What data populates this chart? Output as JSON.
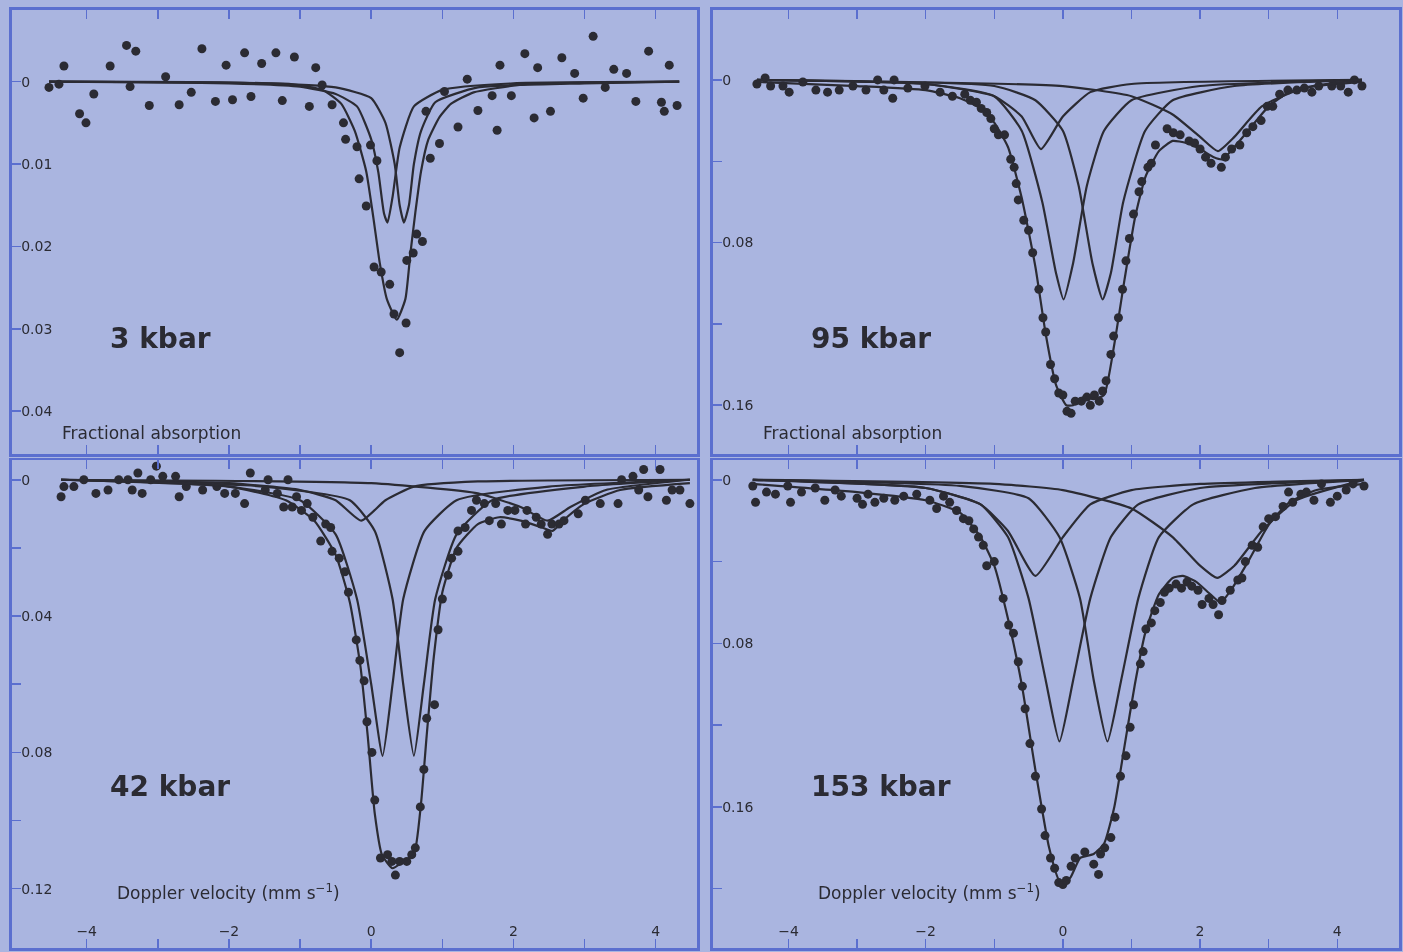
{
  "chart_data": [
    {
      "type": "scatter",
      "ylabel": "Fractional absorption",
      "annotations": [
        "3 kbar"
      ],
      "xlim": [
        -5.05,
        4.58
      ],
      "ylim": [
        0.0452,
        -0.0087
      ],
      "xticks": [
        {
          "value": -4,
          "label": null
        },
        {
          "value": -3,
          "label": null
        },
        {
          "value": -2,
          "label": null
        },
        {
          "value": -1,
          "label": null
        },
        {
          "value": 0,
          "label": null
        },
        {
          "value": 1,
          "label": null
        },
        {
          "value": 2,
          "label": null
        },
        {
          "value": 3,
          "label": null
        },
        {
          "value": 4,
          "label": null
        }
      ],
      "yticks": [
        0,
        0.01,
        0.02,
        0.03,
        0.04
      ],
      "tick_labels": "y",
      "grid": false,
      "line_style": "solid",
      "series": [
        {
          "type": "scatter",
          "color": "#2b2b33",
          "marker": "circle",
          "x": [
            -4.53,
            -4.39,
            -4.32,
            -4.1,
            -4.01,
            -3.9,
            -3.67,
            -3.44,
            -3.39,
            -3.31,
            -3.12,
            -2.89,
            -2.7,
            -2.53,
            -2.38,
            -2.19,
            -2.04,
            -1.95,
            -1.78,
            -1.69,
            -1.54,
            -1.34,
            -1.25,
            -1.08,
            -0.87,
            -0.78,
            -0.69,
            -0.55,
            -0.39,
            -0.36,
            -0.2,
            -0.17,
            -0.07,
            -0.01,
            0.08,
            0.04,
            0.14,
            0.26,
            0.32,
            0.4,
            0.49,
            0.5,
            0.59,
            0.64,
            0.72,
            0.77,
            0.83,
            0.96,
            1.03,
            1.22,
            1.35,
            1.5,
            1.7,
            1.77,
            1.81,
            1.97,
            2.16,
            2.29,
            2.34,
            2.52,
            2.68,
            2.86,
            2.98,
            3.12,
            3.29,
            3.41,
            3.59,
            3.72,
            3.9,
            4.08,
            4.12,
            4.19,
            4.3
          ],
          "values": [
            0.0007,
            0.0003,
            -0.0019,
            0.0039,
            0.005,
            0.0015,
            -0.0019,
            -0.0044,
            0.0006,
            -0.0037,
            0.0029,
            -0.0006,
            0.0028,
            0.0013,
            -0.004,
            0.0024,
            -0.002,
            0.0022,
            -0.0035,
            0.0018,
            -0.0022,
            -0.0035,
            0.0023,
            -0.003,
            0.003,
            -0.0017,
            0.0004,
            0.0028,
            0.005,
            0.007,
            0.0079,
            0.0118,
            0.0151,
            0.0077,
            0.0096,
            0.0225,
            0.0231,
            0.0246,
            0.0282,
            0.0329,
            0.0293,
            0.0217,
            0.0208,
            0.0185,
            0.0194,
            0.0036,
            0.0093,
            0.0075,
            0.0012,
            0.0055,
            -0.0003,
            0.0035,
            0.0017,
            0.0059,
            -0.002,
            0.0017,
            -0.0034,
            0.0044,
            -0.0017,
            0.0036,
            -0.0029,
            -0.001,
            0.002,
            -0.0055,
            0.0007,
            -0.0015,
            -0.001,
            0.0024,
            -0.0037,
            0.0025,
            0.0036,
            -0.002,
            0.0029
          ]
        },
        {
          "type": "line",
          "color": "#2b2b33",
          "x": [
            -4.53,
            -2.09,
            -1.13,
            -0.68,
            -0.42,
            -0.23,
            -0.07,
            0.03,
            0.12,
            0.22,
            0.36,
            0.48,
            0.55,
            0.62,
            0.7,
            0.8,
            0.96,
            1.12,
            1.44,
            2.08,
            3.04,
            4.33
          ],
          "values": [
            0,
            0.0001,
            0.0003,
            0.001,
            0.0027,
            0.006,
            0.0109,
            0.0165,
            0.022,
            0.0264,
            0.0289,
            0.0264,
            0.0209,
            0.0159,
            0.0109,
            0.0071,
            0.0043,
            0.0027,
            0.0013,
            0.0004,
            0.0001,
            0
          ]
        },
        {
          "type": "line",
          "color": "#2b2b33",
          "x": [
            -4.53,
            -2,
            -1,
            -0.5,
            -0.2,
            0,
            0.1,
            0.18,
            0.23,
            0.3,
            0.4,
            0.6,
            1,
            2,
            4.33
          ],
          "values": [
            0,
            0.0002,
            0.0006,
            0.0015,
            0.003,
            0.007,
            0.011,
            0.016,
            0.0171,
            0.014,
            0.008,
            0.003,
            0.001,
            0.0002,
            0
          ]
        },
        {
          "type": "line",
          "color": "#2b2b33",
          "x": [
            -4.53,
            -2,
            -0.5,
            0,
            0.2,
            0.33,
            0.4,
            0.46,
            0.53,
            0.6,
            0.7,
            0.9,
            1.5,
            3,
            4.33
          ],
          "values": [
            0,
            0.0001,
            0.0007,
            0.002,
            0.005,
            0.01,
            0.015,
            0.0171,
            0.015,
            0.01,
            0.006,
            0.0025,
            0.0007,
            0.0002,
            0
          ]
        }
      ]
    },
    {
      "type": "scatter",
      "ylabel": "Fractional absorption",
      "annotations": [
        "95 kbar"
      ],
      "xlim": [
        -5.1,
        4.9
      ],
      "ylim": [
        0.184,
        -0.0344
      ],
      "xticks": [
        {
          "value": -4,
          "label": null
        },
        {
          "value": -3,
          "label": null
        },
        {
          "value": -2,
          "label": null
        },
        {
          "value": -1,
          "label": null
        },
        {
          "value": 0,
          "label": null
        },
        {
          "value": 1,
          "label": null
        },
        {
          "value": 2,
          "label": null
        },
        {
          "value": 3,
          "label": null
        },
        {
          "value": 4,
          "label": null
        }
      ],
      "yticks": [
        0,
        {
          "value": 0.04,
          "label": null
        },
        0.08,
        {
          "value": 0.12,
          "label": null
        },
        0.16
      ],
      "tick_labels": "y",
      "grid": false,
      "line_style": "solid",
      "series": [
        {
          "type": "scatter",
          "color": "#2b2b33",
          "marker": "circle",
          "x": [
            -4.46,
            -4.34,
            -4.26,
            -4.08,
            -3.99,
            -3.79,
            -3.6,
            -3.43,
            -3.26,
            -3.06,
            -2.87,
            -2.7,
            -2.61,
            -2.48,
            -2.46,
            -2.26,
            -2.01,
            -1.79,
            -1.61,
            -1.43,
            -1.35,
            -1.26,
            -1.19,
            -1.11,
            -1.05,
            -1.0,
            -0.94,
            -0.85,
            -0.76,
            -0.71,
            -0.68,
            -0.65,
            -0.57,
            -0.5,
            -0.44,
            -0.35,
            -0.29,
            -0.25,
            -0.18,
            -0.12,
            -0.06,
            0.0,
            0.06,
            0.12,
            0.18,
            0.27,
            0.35,
            0.4,
            0.46,
            0.53,
            0.58,
            0.63,
            0.7,
            0.74,
            0.81,
            0.87,
            0.92,
            0.97,
            1.03,
            1.11,
            1.15,
            1.24,
            1.29,
            1.35,
            1.52,
            1.61,
            1.71,
            1.84,
            1.92,
            2.0,
            2.08,
            2.16,
            2.31,
            2.37,
            2.46,
            2.58,
            2.68,
            2.77,
            2.89,
            2.98,
            3.06,
            3.16,
            3.28,
            3.41,
            3.52,
            3.63,
            3.73,
            3.92,
            4.05,
            4.16,
            4.25,
            4.36
          ],
          "values": [
            0.002,
            -0.001,
            0.003,
            0.003,
            0.006,
            0.001,
            0.005,
            0.006,
            0.005,
            0.003,
            0.005,
            0.0,
            0.005,
            0.009,
            0.0,
            0.004,
            0.003,
            0.006,
            0.008,
            0.007,
            0.01,
            0.011,
            0.014,
            0.016,
            0.019,
            0.024,
            0.027,
            0.027,
            0.039,
            0.043,
            0.051,
            0.059,
            0.069,
            0.074,
            0.085,
            0.103,
            0.117,
            0.124,
            0.14,
            0.147,
            0.154,
            0.155,
            0.163,
            0.164,
            0.158,
            0.158,
            0.156,
            0.16,
            0.155,
            0.158,
            0.153,
            0.148,
            0.135,
            0.126,
            0.117,
            0.103,
            0.089,
            0.078,
            0.066,
            0.055,
            0.05,
            0.043,
            0.041,
            0.032,
            0.024,
            0.026,
            0.027,
            0.03,
            0.031,
            0.034,
            0.038,
            0.041,
            0.043,
            0.038,
            0.034,
            0.032,
            0.026,
            0.023,
            0.02,
            0.013,
            0.013,
            0.007,
            0.005,
            0.005,
            0.004,
            0.006,
            0.003,
            0.003,
            0.003,
            0.006,
            0.0,
            0.003
          ]
        },
        {
          "type": "line",
          "color": "#2b2b33",
          "x": [
            -4.46,
            -3,
            -2,
            -1.5,
            -1.2,
            -1,
            -0.8,
            -0.6,
            -0.4,
            -0.25,
            -0.1,
            0.05,
            0.15,
            0.3,
            0.45,
            0.6,
            0.75,
            0.9,
            1.05,
            1.2,
            1.4,
            1.6,
            1.8,
            2.0,
            2.2,
            2.33,
            2.5,
            2.7,
            3.0,
            3.3,
            3.7,
            4.36
          ],
          "values": [
            0.001,
            0.003,
            0.005,
            0.009,
            0.014,
            0.021,
            0.033,
            0.058,
            0.092,
            0.125,
            0.15,
            0.16,
            0.16,
            0.156,
            0.157,
            0.155,
            0.13,
            0.098,
            0.068,
            0.048,
            0.035,
            0.03,
            0.031,
            0.034,
            0.038,
            0.039,
            0.033,
            0.025,
            0.013,
            0.006,
            0.003,
            0.001
          ]
        },
        {
          "type": "line",
          "color": "#2b2b33",
          "x": [
            -4.46,
            -2,
            -1,
            -0.6,
            -0.32,
            0,
            0.4,
            1,
            4.36
          ],
          "values": [
            0,
            0.002,
            0.008,
            0.018,
            0.034,
            0.018,
            0.006,
            0.002,
            0
          ]
        },
        {
          "type": "line",
          "color": "#2b2b33",
          "x": [
            -4.46,
            -2,
            -1,
            -0.6,
            -0.3,
            -0.1,
            0.01,
            0.15,
            0.35,
            0.6,
            1.0,
            2,
            4.36
          ],
          "values": [
            0,
            0.002,
            0.008,
            0.025,
            0.06,
            0.095,
            0.108,
            0.09,
            0.052,
            0.025,
            0.01,
            0.003,
            0
          ]
        },
        {
          "type": "line",
          "color": "#2b2b33",
          "x": [
            -4.46,
            -1,
            -0.4,
            0,
            0.23,
            0.43,
            0.58,
            0.7,
            0.88,
            1.2,
            1.6,
            2.5,
            4.36
          ],
          "values": [
            0,
            0.003,
            0.01,
            0.025,
            0.052,
            0.09,
            0.108,
            0.095,
            0.06,
            0.025,
            0.01,
            0.003,
            0
          ]
        },
        {
          "type": "line",
          "color": "#2b2b33",
          "x": [
            -4.46,
            0,
            1,
            1.6,
            2.0,
            2.26,
            2.5,
            2.9,
            3.5,
            4.36
          ],
          "values": [
            0,
            0.003,
            0.008,
            0.017,
            0.028,
            0.035,
            0.028,
            0.013,
            0.004,
            0
          ]
        }
      ]
    },
    {
      "type": "scatter",
      "xlabel": "Doppler velocity (mm s$^{−1}$)",
      "annotations": [
        "42 kbar"
      ],
      "xlim": [
        -5.05,
        4.58
      ],
      "ylim": [
        0.1374,
        -0.0058
      ],
      "xticks": [
        {
          "value": -4,
          "label": "−4"
        },
        {
          "value": -3,
          "label": null
        },
        {
          "value": -2,
          "label": "−2"
        },
        {
          "value": -1,
          "label": null
        },
        0,
        {
          "value": 1,
          "label": null
        },
        2,
        {
          "value": 3,
          "label": null
        },
        4
      ],
      "yticks": [
        0,
        {
          "value": 0.02,
          "label": null
        },
        0.04,
        {
          "value": 0.06,
          "label": null
        },
        0.08,
        {
          "value": 0.1,
          "label": null
        },
        0.12
      ],
      "grid": false,
      "line_style": "solid",
      "series": [
        {
          "type": "scatter",
          "color": "#2b2b33",
          "marker": "circle",
          "x": [
            -4.36,
            -4.32,
            -4.18,
            -4.04,
            -3.87,
            -3.7,
            -3.55,
            -3.42,
            -3.36,
            -3.28,
            -3.22,
            -3.1,
            -3.02,
            -2.93,
            -2.75,
            -2.7,
            -2.6,
            -2.37,
            -2.17,
            -2.06,
            -1.91,
            -1.78,
            -1.7,
            -1.49,
            -1.45,
            -1.32,
            -1.23,
            -1.17,
            -1.11,
            -1.05,
            -0.98,
            -0.9,
            -0.82,
            -0.71,
            -0.64,
            -0.57,
            -0.55,
            -0.45,
            -0.37,
            -0.32,
            -0.21,
            -0.16,
            -0.1,
            -0.06,
            0.01,
            0.05,
            0.13,
            0.23,
            0.29,
            0.34,
            0.4,
            0.5,
            0.57,
            0.62,
            0.69,
            0.74,
            0.78,
            0.89,
            0.94,
            1.0,
            1.08,
            1.13,
            1.22,
            1.22,
            1.32,
            1.41,
            1.48,
            1.59,
            1.66,
            1.75,
            1.83,
            1.92,
            2.02,
            2.17,
            2.19,
            2.32,
            2.39,
            2.48,
            2.54,
            2.64,
            2.71,
            2.91,
            3.01,
            3.22,
            3.47,
            3.52,
            3.68,
            3.76,
            3.83,
            3.89,
            4.06,
            4.15,
            4.23,
            4.34,
            4.48
          ],
          "values": [
            0.005,
            0.002,
            0.002,
            0.0,
            0.004,
            0.003,
            0.0,
            0.0,
            0.003,
            -0.002,
            0.004,
            0.0,
            -0.004,
            -0.001,
            -0.001,
            0.005,
            0.002,
            0.003,
            0.002,
            0.004,
            0.004,
            0.007,
            -0.002,
            0.003,
            0.0,
            0.004,
            0.008,
            0.0,
            0.008,
            0.005,
            0.009,
            0.007,
            0.011,
            0.018,
            0.013,
            0.014,
            0.021,
            0.023,
            0.027,
            0.033,
            0.047,
            0.053,
            0.059,
            0.071,
            0.08,
            0.094,
            0.111,
            0.11,
            0.112,
            0.116,
            0.112,
            0.112,
            0.11,
            0.108,
            0.096,
            0.085,
            0.07,
            0.066,
            0.044,
            0.035,
            0.028,
            0.023,
            0.021,
            0.015,
            0.014,
            0.009,
            0.006,
            0.007,
            0.012,
            0.007,
            0.013,
            0.009,
            0.009,
            0.013,
            0.009,
            0.011,
            0.013,
            0.016,
            0.013,
            0.013,
            0.012,
            0.01,
            0.006,
            0.007,
            0.007,
            0.0,
            -0.001,
            0.003,
            -0.003,
            0.005,
            -0.003,
            0.006,
            0.003,
            0.003,
            0.007
          ]
        },
        {
          "type": "line",
          "color": "#2b2b33",
          "x": [
            -4.36,
            -2,
            -1.2,
            -0.8,
            -0.5,
            -0.3,
            -0.15,
            -0.05,
            0.05,
            0.15,
            0.3,
            0.45,
            0.6,
            0.7,
            0.78,
            0.88,
            1.0,
            1.2,
            1.5,
            1.8,
            2.1,
            2.4,
            2.55,
            2.75,
            3.0,
            3.5,
            4.48
          ],
          "values": [
            0,
            0.002,
            0.006,
            0.012,
            0.022,
            0.036,
            0.055,
            0.075,
            0.098,
            0.11,
            0.114,
            0.112,
            0.11,
            0.095,
            0.075,
            0.052,
            0.033,
            0.02,
            0.013,
            0.011,
            0.012,
            0.014,
            0.015,
            0.011,
            0.007,
            0.003,
            0.001
          ]
        },
        {
          "type": "line",
          "color": "#2b2b33",
          "x": [
            -4.36,
            -2,
            -1,
            -0.5,
            -0.14,
            0.2,
            0.6,
            1.5,
            4.48
          ],
          "values": [
            0,
            0.001,
            0.003,
            0.006,
            0.012,
            0.006,
            0.002,
            0.0005,
            0
          ]
        },
        {
          "type": "line",
          "color": "#2b2b33",
          "x": [
            -4.36,
            -2,
            -1,
            -0.5,
            -0.2,
            0,
            0.16,
            0.3,
            0.45,
            0.75,
            1.2,
            2.5,
            4.48
          ],
          "values": [
            0,
            0.002,
            0.006,
            0.016,
            0.035,
            0.06,
            0.081,
            0.06,
            0.035,
            0.015,
            0.006,
            0.002,
            0
          ]
        },
        {
          "type": "line",
          "color": "#2b2b33",
          "x": [
            -4.36,
            -1.5,
            -0.3,
            0.05,
            0.3,
            0.45,
            0.6,
            0.74,
            0.9,
            1.2,
            1.7,
            3,
            4.48
          ],
          "values": [
            0,
            0.002,
            0.006,
            0.015,
            0.035,
            0.06,
            0.081,
            0.06,
            0.035,
            0.016,
            0.006,
            0.002,
            0
          ]
        },
        {
          "type": "line",
          "color": "#2b2b33",
          "x": [
            -4.36,
            0,
            1.5,
            2.1,
            2.48,
            2.8,
            3.3,
            4.48
          ],
          "values": [
            0,
            0.001,
            0.004,
            0.008,
            0.012,
            0.008,
            0.003,
            0
          ]
        }
      ]
    },
    {
      "type": "scatter",
      "xlabel": "Doppler velocity (mm s$^{−1}$)",
      "annotations": [
        "153 kbar"
      ],
      "xlim": [
        -5.1,
        4.9
      ],
      "ylim": [
        0.229,
        -0.0097
      ],
      "xticks": [
        {
          "value": -4,
          "label": "−4"
        },
        {
          "value": -3,
          "label": null
        },
        {
          "value": -2,
          "label": "−2"
        },
        {
          "value": -1,
          "label": null
        },
        0,
        {
          "value": 1,
          "label": null
        },
        2,
        {
          "value": 3,
          "label": null
        },
        4
      ],
      "yticks": [
        0,
        {
          "value": 0.04,
          "label": null
        },
        0.08,
        {
          "value": 0.12,
          "label": null
        },
        0.16,
        {
          "value": 0.2,
          "label": null
        }
      ],
      "grid": false,
      "line_style": "solid",
      "series": [
        {
          "type": "scatter",
          "color": "#2b2b33",
          "marker": "circle",
          "x": [
            -4.52,
            -4.48,
            -4.32,
            -4.19,
            -4.01,
            -3.97,
            -3.81,
            -3.61,
            -3.47,
            -3.32,
            -3.23,
            -3.0,
            -2.92,
            -2.84,
            -2.74,
            -2.61,
            -2.45,
            -2.32,
            -2.13,
            -1.94,
            -1.84,
            -1.74,
            -1.65,
            -1.55,
            -1.45,
            -1.37,
            -1.3,
            -1.23,
            -1.16,
            -1.11,
            -1.0,
            -0.87,
            -0.79,
            -0.72,
            -0.65,
            -0.59,
            -0.55,
            -0.48,
            -0.4,
            -0.31,
            -0.26,
            -0.18,
            -0.12,
            -0.06,
            0.0,
            0.05,
            0.12,
            0.18,
            0.32,
            0.45,
            0.52,
            0.55,
            0.61,
            0.7,
            0.76,
            0.84,
            0.92,
            0.98,
            1.03,
            1.13,
            1.17,
            1.21,
            1.29,
            1.34,
            1.42,
            1.48,
            1.55,
            1.65,
            1.73,
            1.81,
            1.88,
            1.97,
            2.03,
            2.13,
            2.19,
            2.27,
            2.32,
            2.44,
            2.55,
            2.61,
            2.66,
            2.76,
            2.84,
            2.92,
            3.0,
            3.1,
            3.21,
            3.29,
            3.35,
            3.47,
            3.55,
            3.66,
            3.77,
            3.9,
            4.0,
            4.13,
            4.23,
            4.39
          ],
          "values": [
            0.003,
            0.011,
            0.006,
            0.007,
            0.003,
            0.011,
            0.006,
            0.004,
            0.01,
            0.005,
            0.008,
            0.009,
            0.012,
            0.007,
            0.011,
            0.009,
            0.01,
            0.008,
            0.007,
            0.01,
            0.014,
            0.008,
            0.011,
            0.015,
            0.019,
            0.02,
            0.024,
            0.028,
            0.032,
            0.042,
            0.04,
            0.058,
            0.071,
            0.075,
            0.089,
            0.101,
            0.112,
            0.129,
            0.145,
            0.161,
            0.174,
            0.185,
            0.19,
            0.197,
            0.198,
            0.196,
            0.189,
            0.185,
            0.182,
            0.188,
            0.193,
            0.183,
            0.18,
            0.175,
            0.165,
            0.145,
            0.135,
            0.121,
            0.11,
            0.09,
            0.084,
            0.073,
            0.07,
            0.064,
            0.06,
            0.055,
            0.053,
            0.051,
            0.053,
            0.05,
            0.052,
            0.054,
            0.061,
            0.058,
            0.061,
            0.066,
            0.059,
            0.054,
            0.049,
            0.048,
            0.04,
            0.032,
            0.033,
            0.023,
            0.019,
            0.018,
            0.013,
            0.006,
            0.011,
            0.007,
            0.006,
            0.01,
            0.002,
            0.011,
            0.008,
            0.005,
            0.002,
            0.003
          ]
        },
        {
          "type": "line",
          "color": "#2b2b33",
          "x": [
            -4.52,
            -3,
            -2,
            -1.5,
            -1.2,
            -1.0,
            -0.8,
            -0.6,
            -0.4,
            -0.2,
            -0.05,
            0.1,
            0.25,
            0.45,
            0.6,
            0.75,
            0.9,
            1.05,
            1.2,
            1.4,
            1.6,
            1.75,
            1.95,
            2.15,
            2.3,
            2.45,
            2.7,
            3.0,
            3.3,
            3.7,
            4.39
          ],
          "values": [
            0.002,
            0.006,
            0.01,
            0.016,
            0.028,
            0.042,
            0.068,
            0.1,
            0.142,
            0.18,
            0.196,
            0.195,
            0.185,
            0.183,
            0.178,
            0.16,
            0.13,
            0.1,
            0.075,
            0.056,
            0.048,
            0.047,
            0.05,
            0.056,
            0.06,
            0.054,
            0.04,
            0.022,
            0.011,
            0.005,
            0.002
          ]
        },
        {
          "type": "line",
          "color": "#2b2b33",
          "x": [
            -4.52,
            -2,
            -1.2,
            -0.8,
            -0.4,
            0,
            0.4,
            1,
            2,
            4.39
          ],
          "values": [
            0,
            0.004,
            0.012,
            0.025,
            0.047,
            0.028,
            0.012,
            0.005,
            0.002,
            0
          ]
        },
        {
          "type": "line",
          "color": "#2b2b33",
          "x": [
            -4.52,
            -2,
            -1.2,
            -0.8,
            -0.5,
            -0.25,
            -0.05,
            0.15,
            0.4,
            0.7,
            1.1,
            2,
            4.39
          ],
          "values": [
            0,
            0.004,
            0.012,
            0.028,
            0.058,
            0.098,
            0.128,
            0.098,
            0.058,
            0.028,
            0.012,
            0.004,
            0
          ]
        },
        {
          "type": "line",
          "color": "#2b2b33",
          "x": [
            -4.52,
            -1.5,
            -0.5,
            -0.05,
            0.25,
            0.45,
            0.65,
            0.85,
            1.1,
            1.4,
            1.9,
            2.8,
            4.39
          ],
          "values": [
            0,
            0.003,
            0.009,
            0.028,
            0.058,
            0.098,
            0.128,
            0.098,
            0.058,
            0.028,
            0.012,
            0.004,
            0
          ]
        },
        {
          "type": "line",
          "color": "#2b2b33",
          "x": [
            -4.52,
            -1,
            0,
            1,
            1.6,
            2.0,
            2.25,
            2.5,
            2.9,
            3.4,
            4.39
          ],
          "values": [
            0,
            0.002,
            0.005,
            0.014,
            0.028,
            0.042,
            0.048,
            0.042,
            0.025,
            0.01,
            0
          ]
        }
      ]
    }
  ]
}
